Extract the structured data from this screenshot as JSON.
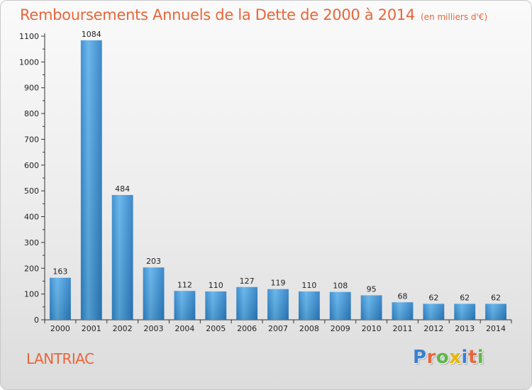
{
  "title": "Remboursements Annuels de la Dette de 2000 à 2014",
  "subtitle": "(en milliers d'€)",
  "commune": "LANTRIAC",
  "logo": {
    "text": "Proxiti",
    "letter_colors": [
      "#3a7fd0",
      "#e8663a",
      "#5db84a",
      "#e6b800",
      "#3a7fd0",
      "#e8663a",
      "#5db84a"
    ]
  },
  "chart_data": {
    "type": "bar",
    "categories": [
      "2000",
      "2001",
      "2002",
      "2003",
      "2004",
      "2005",
      "2006",
      "2007",
      "2008",
      "2009",
      "2010",
      "2011",
      "2012",
      "2013",
      "2014"
    ],
    "values": [
      163,
      1084,
      484,
      203,
      112,
      110,
      127,
      119,
      110,
      108,
      95,
      68,
      62,
      62,
      62
    ],
    "title": "Remboursements Annuels de la Dette de 2000 à 2014",
    "ylim": [
      0,
      1100
    ],
    "yticks": [
      0,
      100,
      200,
      300,
      400,
      500,
      600,
      700,
      800,
      900,
      1000,
      1100
    ],
    "grid": false,
    "bar_color": "#3b95d8"
  }
}
